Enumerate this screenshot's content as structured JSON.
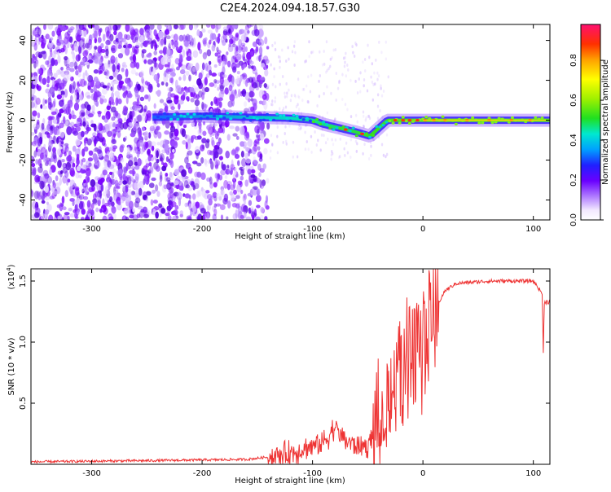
{
  "figure_title": "C2E4.2024.094.18.57.G30",
  "chart_data": [
    {
      "type": "heatmap",
      "xlabel": "Height of straight line (km)",
      "ylabel": "Frequency (Hz)",
      "xlim": [
        -355,
        115
      ],
      "ylim": [
        -50,
        48
      ],
      "x_ticks": [
        -300,
        -200,
        -100,
        0,
        100
      ],
      "y_ticks": [
        -40,
        -20,
        0,
        20,
        40
      ],
      "colorbar": {
        "label": "Normalized spectral amplitude",
        "ticks": [
          0.0,
          0.2,
          0.4,
          0.6,
          0.8
        ],
        "range": [
          0,
          0.98
        ]
      },
      "ridge": [
        {
          "x": -245,
          "y": 1.5
        },
        {
          "x": -200,
          "y": 2
        },
        {
          "x": -160,
          "y": 1.5
        },
        {
          "x": -120,
          "y": 1
        },
        {
          "x": -100,
          "y": 0
        },
        {
          "x": -90,
          "y": -2
        },
        {
          "x": -75,
          "y": -4
        },
        {
          "x": -60,
          "y": -6
        },
        {
          "x": -48,
          "y": -8
        },
        {
          "x": -40,
          "y": -4
        },
        {
          "x": -32,
          "y": 0
        },
        {
          "x": 0,
          "y": 0
        },
        {
          "x": 115,
          "y": 0
        }
      ]
    },
    {
      "type": "line",
      "xlabel": "Height of straight line (km)",
      "ylabel": "SNR (10 * v/v)",
      "y_multiplier": "(x10",
      "y_multiplier_exp": "4",
      "xlim": [
        -355,
        115
      ],
      "ylim": [
        0,
        1.6
      ],
      "x_ticks": [
        -300,
        -200,
        -100,
        0,
        100
      ],
      "y_ticks": [
        0.5,
        1.0,
        1.5
      ],
      "y_tick_labels": [
        "0.5",
        "1.0",
        "1.5"
      ],
      "series_color": "#ee3333",
      "envelope": [
        {
          "x": -355,
          "y": 0.02
        },
        {
          "x": -250,
          "y": 0.03
        },
        {
          "x": -160,
          "y": 0.04
        },
        {
          "x": -130,
          "y": 0.07
        },
        {
          "x": -110,
          "y": 0.12
        },
        {
          "x": -90,
          "y": 0.18
        },
        {
          "x": -80,
          "y": 0.3
        },
        {
          "x": -70,
          "y": 0.2
        },
        {
          "x": -60,
          "y": 0.15
        },
        {
          "x": -50,
          "y": 0.15
        },
        {
          "x": -40,
          "y": 0.35
        },
        {
          "x": -30,
          "y": 0.6
        },
        {
          "x": -20,
          "y": 0.85
        },
        {
          "x": -10,
          "y": 1.0
        },
        {
          "x": 0,
          "y": 1.12
        },
        {
          "x": 10,
          "y": 1.25
        },
        {
          "x": 20,
          "y": 1.42
        },
        {
          "x": 30,
          "y": 1.48
        },
        {
          "x": 60,
          "y": 1.5
        },
        {
          "x": 100,
          "y": 1.5
        },
        {
          "x": 108,
          "y": 1.4
        },
        {
          "x": 109,
          "y": 0.9
        },
        {
          "x": 110,
          "y": 1.33
        },
        {
          "x": 115,
          "y": 1.33
        }
      ]
    }
  ]
}
